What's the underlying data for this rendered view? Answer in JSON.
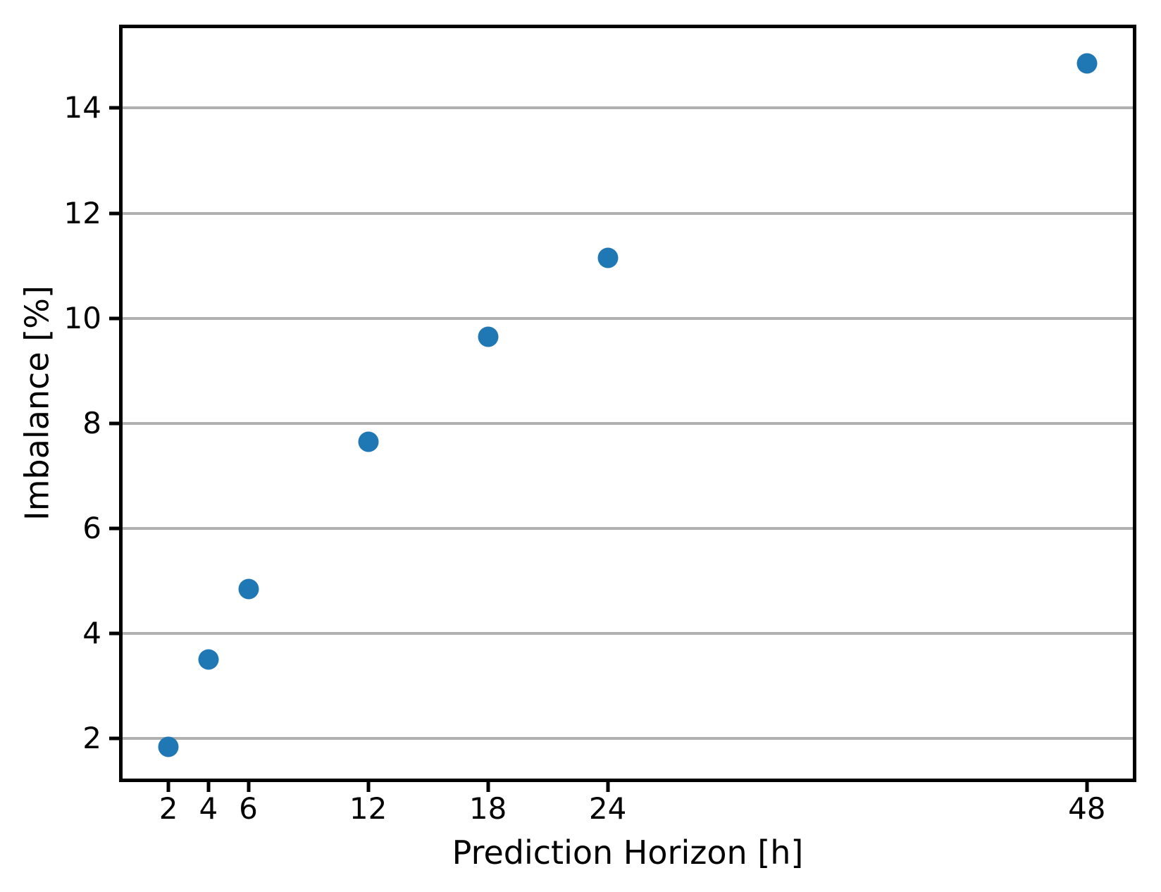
{
  "chart_data": {
    "type": "scatter",
    "title": "",
    "xlabel": "Prediction Horizon [h]",
    "ylabel": "Imbalance [%]",
    "x": [
      2,
      4,
      6,
      12,
      18,
      24,
      48
    ],
    "y": [
      1.85,
      3.5,
      4.85,
      7.65,
      9.65,
      11.15,
      14.85
    ],
    "xticks": [
      2,
      4,
      6,
      12,
      18,
      24,
      48
    ],
    "xtick_labels": [
      "2",
      "4",
      "6",
      "12",
      "18",
      "24",
      "48"
    ],
    "yticks": [
      2,
      4,
      6,
      8,
      10,
      12,
      14
    ],
    "ytick_labels": [
      "2",
      "4",
      "6",
      "8",
      "10",
      "12",
      "14"
    ],
    "xlim": [
      -0.3,
      50.3
    ],
    "ylim": [
      1.24,
      15.52
    ],
    "grid": "horizontal-only",
    "legend_position": "none",
    "marker_color": "#1f77b4",
    "grid_color": "#b0b0b0",
    "spine_color": "#000000",
    "background_color": "#ffffff"
  }
}
